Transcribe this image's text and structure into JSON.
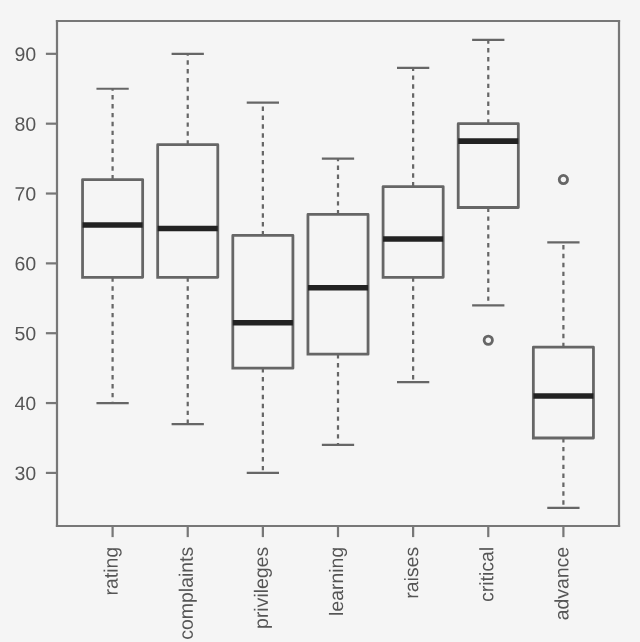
{
  "chart_data": {
    "type": "box",
    "categories": [
      "rating",
      "complaints",
      "privileges",
      "learning",
      "raises",
      "critical",
      "advance"
    ],
    "boxes": [
      {
        "low": 40,
        "q1": 58,
        "median": 65.5,
        "q3": 72,
        "high": 85
      },
      {
        "low": 37,
        "q1": 58,
        "median": 65,
        "q3": 77,
        "high": 90
      },
      {
        "low": 30,
        "q1": 45,
        "median": 51.5,
        "q3": 64,
        "high": 83
      },
      {
        "low": 34,
        "q1": 47,
        "median": 56.5,
        "q3": 67,
        "high": 75
      },
      {
        "low": 43,
        "q1": 58,
        "median": 63.5,
        "q3": 71,
        "high": 88
      },
      {
        "low": 54,
        "q1": 68,
        "median": 77.5,
        "q3": 80,
        "high": 92,
        "outliers": [
          49
        ]
      },
      {
        "low": 25,
        "q1": 35,
        "median": 41,
        "q3": 48,
        "high": 63,
        "outliers": [
          72
        ]
      }
    ],
    "color": "#666666",
    "ylim": [
      22.4,
      94.7
    ],
    "yticks": [
      30,
      40,
      50,
      60,
      70,
      80,
      90
    ],
    "grid": false
  }
}
